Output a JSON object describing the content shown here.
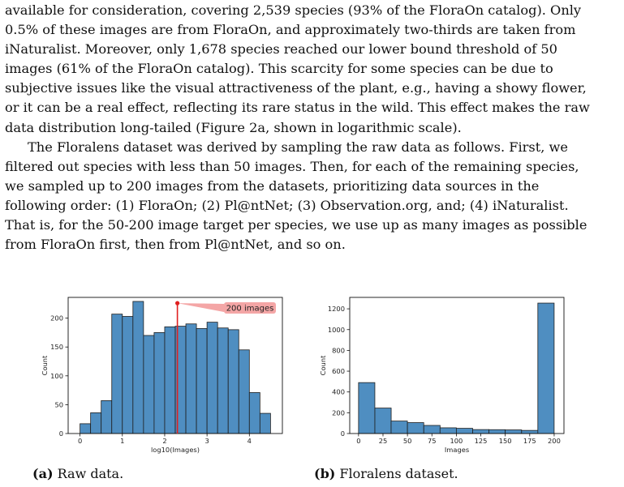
{
  "paragraph_1": {
    "lines": [
      "available for consideration, covering 2,539 species (93% of the FloraOn catalog). Only",
      "0.5% of these images are from FloraOn, and approximately two-thirds are taken from",
      "iNaturalist. Moreover, only 1,678 species reached our lower bound threshold of 50",
      "images (61% of the FloraOn catalog). This scarcity for some species can be due to",
      "subjective issues like the visual attractiveness of the plant, e.g., having a showy flower,",
      "or it can be a real effect, reflecting its rare status in the wild. This effect makes the raw",
      "data distribution long-tailed (Figure 2a, shown in logarithmic scale)."
    ]
  },
  "paragraph_2": {
    "lines": [
      "The Floralens dataset was derived by sampling the raw data as follows. First, we",
      "filtered out species with less than 50 images. Then, for each of the remaining species,",
      "we sampled up to 200 images from the datasets, prioritizing data sources in the",
      "following order: (1) FloraOn; (2) Pl@ntNet; (3) Observation.org, and; (4) iNaturalist.",
      "That is, for the 50-200 image target per species, we use up as many images as possible",
      "from FloraOn first, then from Pl@ntNet, and so on."
    ]
  },
  "captions": {
    "a_label": "(a)",
    "a_text": "Raw data.",
    "b_label": "(b)",
    "b_text": "Floralens dataset."
  },
  "colors": {
    "bar_fill": "#4f8ec1",
    "bar_edge": "#1f1f1f",
    "marker_line": "#e02020",
    "annotation_bg": "#f4a6a6"
  },
  "chart_data": [
    {
      "type": "bar",
      "subfigure": "a",
      "xlabel": "log10(Images)",
      "ylabel": "Count",
      "xlim": [
        -0.28,
        4.78
      ],
      "ylim": [
        0,
        236
      ],
      "xticks": [
        0,
        1,
        2,
        3,
        4
      ],
      "yticks": [
        0,
        50,
        100,
        150,
        200
      ],
      "bin_width": 0.25,
      "bin_starts": [
        0.0,
        0.25,
        0.5,
        0.75,
        1.0,
        1.25,
        1.5,
        1.75,
        2.0,
        2.25,
        2.5,
        2.75,
        3.0,
        3.25,
        3.5,
        3.75,
        4.0,
        4.25
      ],
      "values": [
        17,
        36,
        57,
        207,
        203,
        229,
        170,
        175,
        185,
        186,
        190,
        182,
        193,
        183,
        180,
        145,
        71,
        35
      ],
      "annotation": {
        "x": 2.3,
        "y": 226,
        "text": "200 images"
      }
    },
    {
      "type": "bar",
      "subfigure": "b",
      "xlabel": "Images",
      "ylabel": "Count",
      "xlim": [
        -9,
        210
      ],
      "ylim": [
        0,
        1310
      ],
      "xticks": [
        0,
        25,
        50,
        75,
        100,
        125,
        150,
        175,
        200
      ],
      "yticks": [
        0,
        200,
        400,
        600,
        800,
        1000,
        1200
      ],
      "bin_starts": [
        0,
        16.7,
        33.3,
        50.0,
        66.7,
        83.3,
        100.0,
        116.7,
        133.3,
        150.0,
        166.7,
        183.3
      ],
      "bin_width": 16.67,
      "values": [
        490,
        245,
        120,
        105,
        78,
        55,
        50,
        38,
        37,
        35,
        30,
        1255
      ]
    }
  ]
}
